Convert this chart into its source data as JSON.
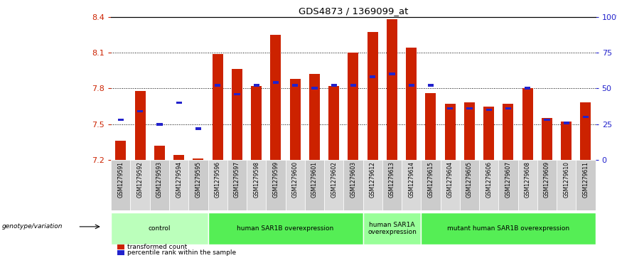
{
  "title": "GDS4873 / 1369099_at",
  "samples": [
    "GSM1279591",
    "GSM1279592",
    "GSM1279593",
    "GSM1279594",
    "GSM1279595",
    "GSM1279596",
    "GSM1279597",
    "GSM1279598",
    "GSM1279599",
    "GSM1279600",
    "GSM1279601",
    "GSM1279602",
    "GSM1279603",
    "GSM1279612",
    "GSM1279613",
    "GSM1279614",
    "GSM1279615",
    "GSM1279604",
    "GSM1279605",
    "GSM1279606",
    "GSM1279607",
    "GSM1279608",
    "GSM1279609",
    "GSM1279610",
    "GSM1279611"
  ],
  "transformed_count": [
    7.36,
    7.78,
    7.32,
    7.24,
    7.21,
    8.09,
    7.96,
    7.82,
    8.25,
    7.88,
    7.92,
    7.82,
    8.1,
    8.27,
    8.38,
    8.14,
    7.76,
    7.67,
    7.68,
    7.65,
    7.67,
    7.8,
    7.55,
    7.52,
    7.68
  ],
  "percentile_rank": [
    28,
    34,
    25,
    40,
    22,
    52,
    46,
    52,
    54,
    52,
    50,
    52,
    52,
    58,
    60,
    52,
    52,
    36,
    36,
    35,
    36,
    50,
    28,
    26,
    30
  ],
  "y_min": 7.2,
  "y_max": 8.4,
  "y_ticks": [
    7.2,
    7.5,
    7.8,
    8.1,
    8.4
  ],
  "right_y_ticks": [
    0,
    25,
    50,
    75,
    100
  ],
  "bar_color": "#cc2200",
  "blue_color": "#2222cc",
  "bg_color_odd": "#c8c8c8",
  "bg_color_even": "#d8d8d8",
  "groups": [
    {
      "label": "control",
      "start": 0,
      "end": 4,
      "color": "#bbffbb"
    },
    {
      "label": "human SAR1B overexpression",
      "start": 5,
      "end": 12,
      "color": "#55ee55"
    },
    {
      "label": "human SAR1A\noverexpression",
      "start": 13,
      "end": 15,
      "color": "#99ff99"
    },
    {
      "label": "mutant human SAR1B overexpression",
      "start": 16,
      "end": 24,
      "color": "#55ee55"
    }
  ],
  "group_label_prefix": "genotype/variation",
  "legend_items": [
    {
      "label": "transformed count",
      "color": "#cc2200"
    },
    {
      "label": "percentile rank within the sample",
      "color": "#2222cc"
    }
  ]
}
